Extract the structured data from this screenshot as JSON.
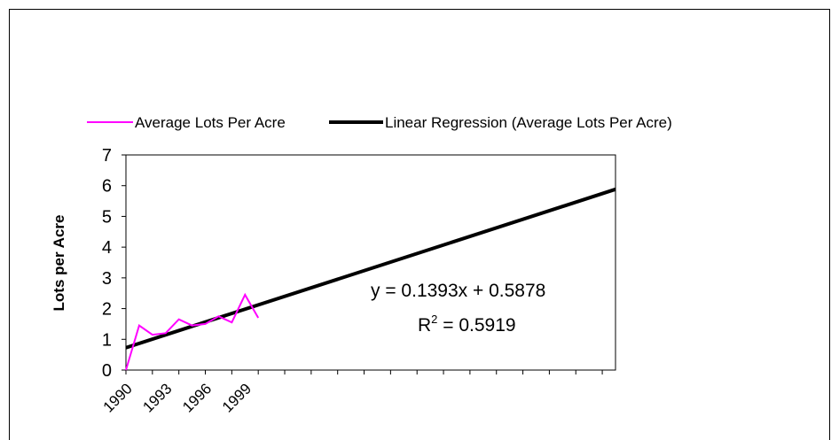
{
  "chart_data": {
    "type": "line",
    "title": "",
    "xlabel": "",
    "ylabel": "Lots per Acre",
    "x_tick_labels": [
      "1990",
      "1993",
      "1996",
      "1999"
    ],
    "x_start_year": 1990,
    "x_end_year": 2027,
    "ylim": [
      0,
      7
    ],
    "y_ticks": [
      0,
      1,
      2,
      3,
      4,
      5,
      6,
      7
    ],
    "grid": false,
    "legend_position": "top",
    "series": [
      {
        "name": "Average Lots Per Acre",
        "color": "#ff00ff",
        "x": [
          1990,
          1991,
          1992,
          1993,
          1994,
          1995,
          1996,
          1997,
          1998,
          1999,
          2000,
          2001
        ],
        "y": [
          0.0,
          1.45,
          1.15,
          1.2,
          1.65,
          1.45,
          1.5,
          1.75,
          1.55,
          2.45,
          1.7,
          null
        ]
      },
      {
        "name": "Linear Regression (Average Lots Per Acre)",
        "color": "#000000",
        "slope": 0.1393,
        "intercept": 0.5878
      }
    ],
    "annotations": {
      "equation": "y = 0.1393x + 0.5878",
      "r2_prefix": "R",
      "r2_sup": "2",
      "r2_rest": " = 0.5919"
    }
  }
}
